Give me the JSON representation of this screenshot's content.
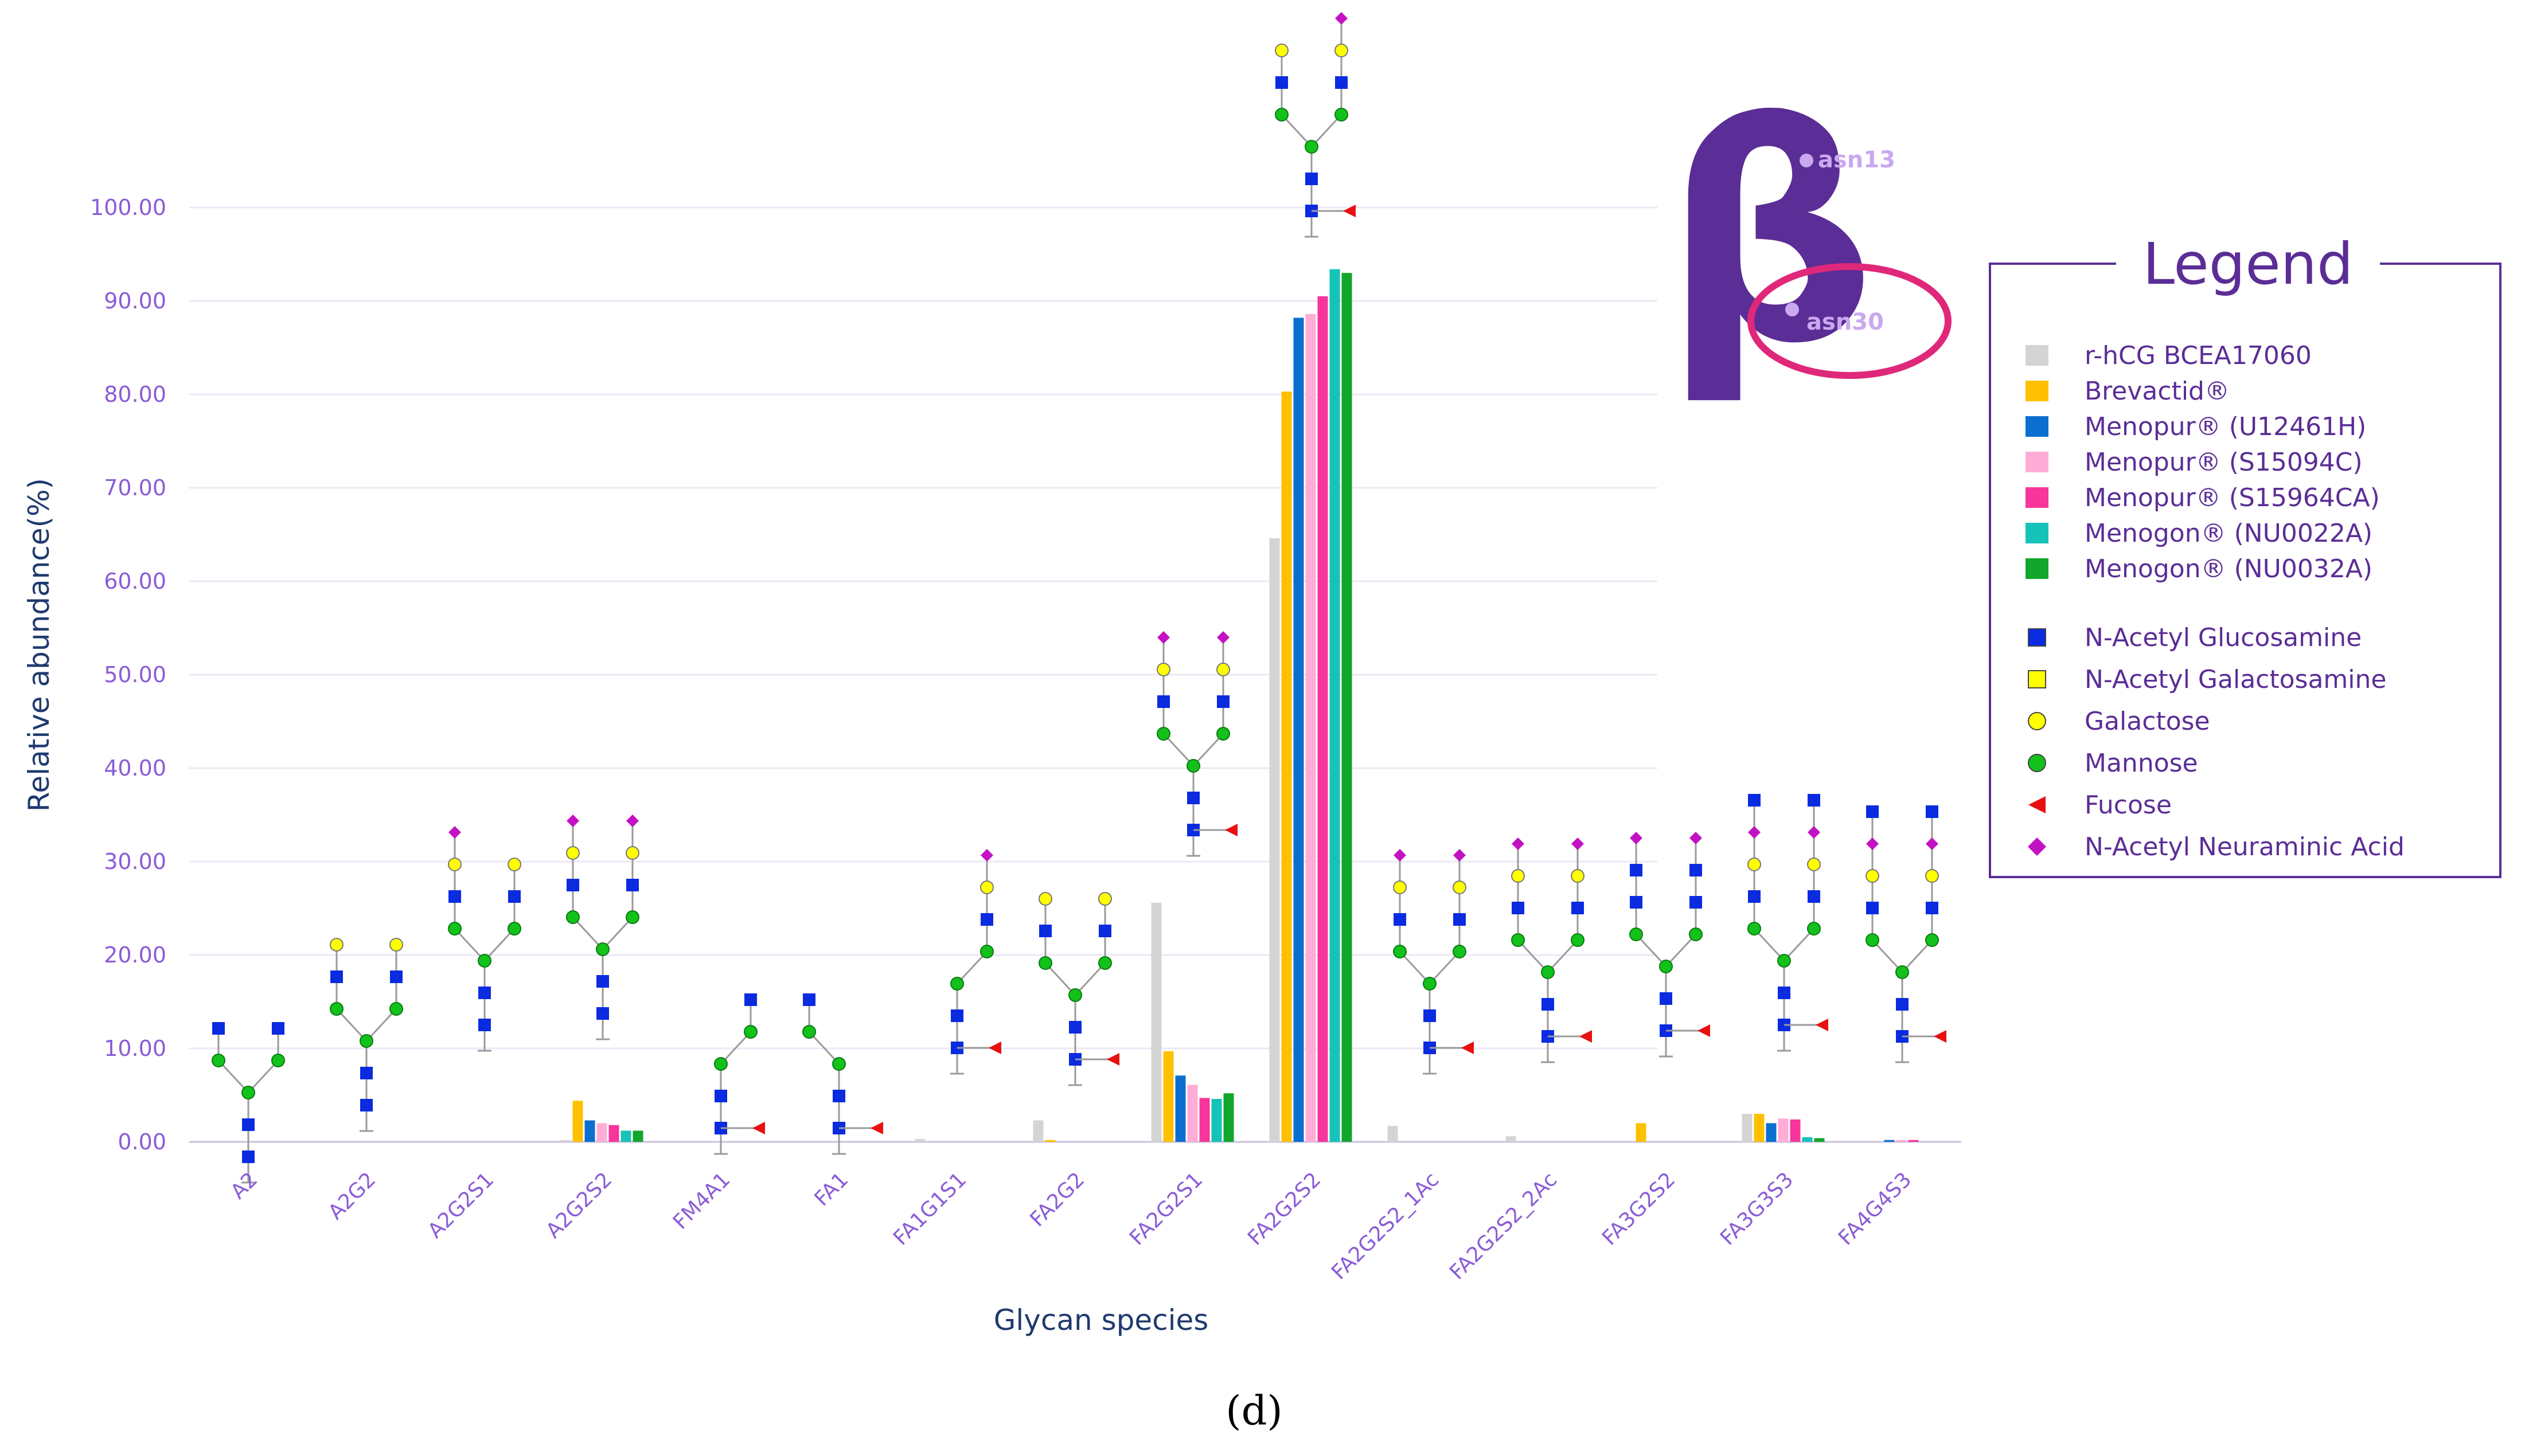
{
  "colors": {
    "r-hCG BCEA17060": "#d4d4d4",
    "Brevactid®": "#ffc000",
    "Menopur® (U12461H)": "#0b6fcf",
    "Menopur® (S15094C)": "#ffadd6",
    "Menopur® (S15964CA)": "#f7359a",
    "Menogon® (NU0022A)": "#16c3b8",
    "Menogon® (NU0032A)": "#12a62c",
    "axis_text": "#8a5cd6",
    "axis_title": "#1f3a6e",
    "legend": "#5b2d96",
    "highlight": "#e0287a"
  },
  "chart_data": {
    "type": "bar",
    "xlabel": "Glycan species",
    "ylabel": "Relative abundance(%)",
    "ylim": [
      0,
      100
    ],
    "y_ticks": [
      "0.00",
      "10.00",
      "20.00",
      "30.00",
      "40.00",
      "50.00",
      "60.00",
      "70.00",
      "80.00",
      "90.00",
      "100.00"
    ],
    "categories": [
      "A2",
      "A2G2",
      "A2G2S1",
      "A2G2S2",
      "FM4A1",
      "FA1",
      "FA1G1S1",
      "FA2G2",
      "FA2G2S1",
      "FA2G2S2",
      "FA2G2S2_1Ac",
      "FA2G2S2_2Ac",
      "FA3G2S2",
      "FA3G3S3",
      "FA4G4S3"
    ],
    "series": [
      {
        "name": "r-hCG BCEA17060",
        "values": [
          0,
          0,
          0,
          0.2,
          0,
          0,
          0.3,
          2.3,
          25.6,
          64.6,
          1.7,
          0.6,
          0,
          3.0,
          0
        ]
      },
      {
        "name": "Brevactid®",
        "values": [
          0,
          0,
          0,
          4.4,
          0,
          0,
          0,
          0.2,
          9.7,
          80.3,
          0,
          0,
          2.0,
          3.0,
          0
        ]
      },
      {
        "name": "Menopur® (U12461H)",
        "values": [
          0,
          0,
          0,
          2.3,
          0,
          0,
          0,
          0,
          7.1,
          88.2,
          0,
          0,
          0,
          2.0,
          0.2
        ]
      },
      {
        "name": "Menopur® (S15094C)",
        "values": [
          0,
          0,
          0,
          2.0,
          0,
          0,
          0,
          0,
          6.1,
          88.6,
          0,
          0,
          0,
          2.5,
          0.2
        ]
      },
      {
        "name": "Menopur® (S15964CA)",
        "values": [
          0,
          0,
          0,
          1.8,
          0,
          0,
          0,
          0,
          4.7,
          90.5,
          0,
          0,
          0,
          2.4,
          0.2
        ]
      },
      {
        "name": "Menogon® (NU0022A)",
        "values": [
          0,
          0,
          0,
          1.2,
          0,
          0,
          0,
          0,
          4.6,
          93.4,
          0,
          0,
          0,
          0.5,
          0
        ]
      },
      {
        "name": "Menogon® (NU0032A)",
        "values": [
          0,
          0,
          0,
          1.2,
          0,
          0,
          0,
          0,
          5.2,
          93.0,
          0,
          0,
          0,
          0.4,
          0
        ]
      }
    ],
    "legend_placement": "right",
    "grid": true
  },
  "legend": {
    "title": "Legend",
    "series_labels": [
      "r-hCG BCEA17060",
      "Brevactid®",
      "Menopur® (U12461H)",
      "Menopur® (S15094C)",
      "Menopur® (S15964CA)",
      "Menogon® (NU0022A)",
      "Menogon® (NU0032A)"
    ],
    "symbols": [
      {
        "label": "N-Acetyl Glucosamine",
        "shape": "square",
        "color": "#0a2be0"
      },
      {
        "label": "N-Acetyl Galactosamine",
        "shape": "square",
        "color": "#ffff00"
      },
      {
        "label": "Galactose",
        "shape": "circle",
        "color": "#ffff00"
      },
      {
        "label": "Mannose",
        "shape": "circle",
        "color": "#12c21a"
      },
      {
        "label": "Fucose",
        "shape": "triangle",
        "color": "#e81010"
      },
      {
        "label": "N-Acetyl Neuraminic Acid",
        "shape": "diamond",
        "color": "#c312c3"
      }
    ]
  },
  "subunit_logo": {
    "symbol": "β",
    "site_1": "asn13",
    "site_2": "asn30"
  },
  "panel_label": "(d)"
}
